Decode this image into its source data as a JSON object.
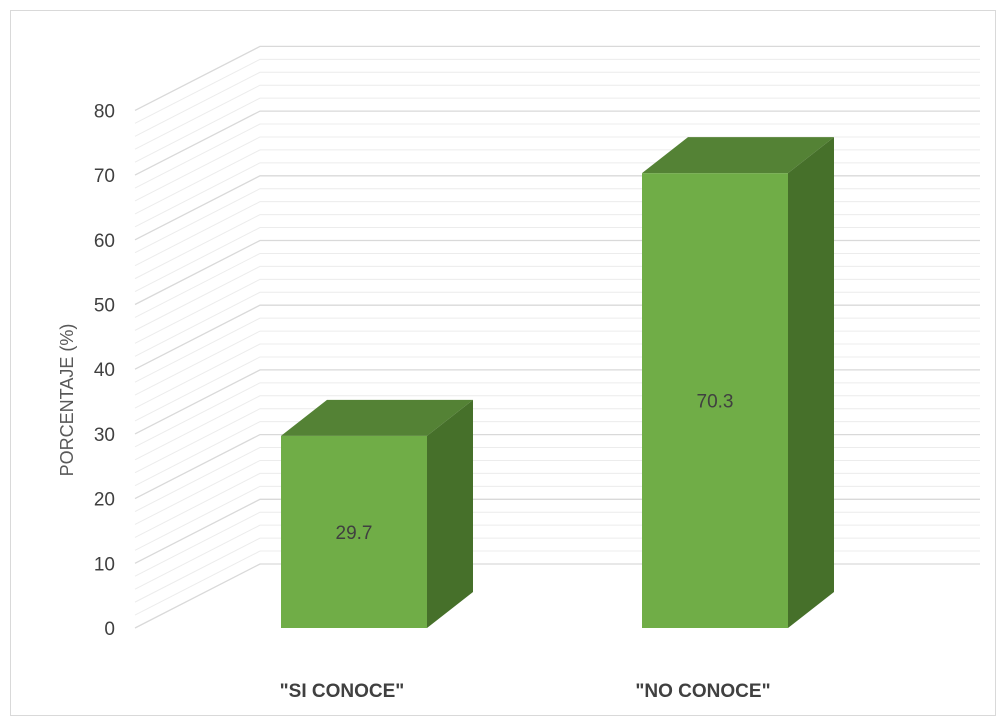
{
  "chart_data": {
    "type": "bar",
    "title": "",
    "xlabel": "",
    "ylabel": "PORCENTAJE (%)",
    "ylim": [
      0,
      80
    ],
    "yticks": [
      "0",
      "10",
      "20",
      "30",
      "40",
      "50",
      "60",
      "70",
      "80"
    ],
    "categories": [
      "\"SI CONOCE\"",
      "\"NO CONOCE\""
    ],
    "values": [
      29.7,
      70.3
    ],
    "data_labels": [
      "29.7",
      "70.3"
    ],
    "grid": true,
    "style": "3d-column",
    "colors": {
      "front": "#70ad47",
      "top": "#548235",
      "side": "#46702a",
      "grid": "#d9d9d9",
      "text": "#404040",
      "frame": "#d9d9d9"
    }
  }
}
